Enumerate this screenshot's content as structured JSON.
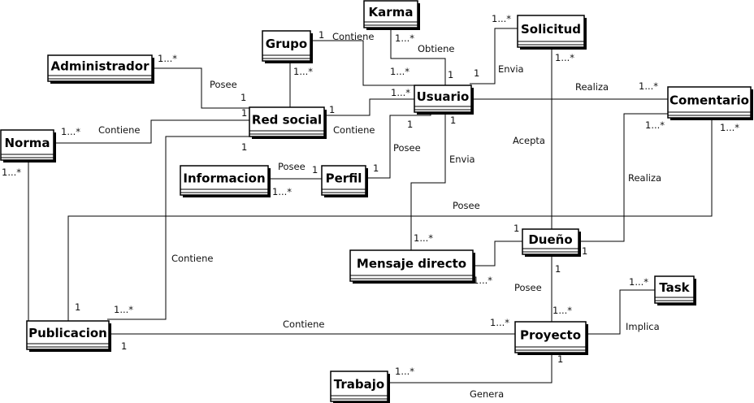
{
  "entities": [
    {
      "id": "karma",
      "name": "Karma"
    },
    {
      "id": "solicitud",
      "name": "Solicitud"
    },
    {
      "id": "grupo",
      "name": "Grupo"
    },
    {
      "id": "administrador",
      "name": "Administrador"
    },
    {
      "id": "usuario",
      "name": "Usuario"
    },
    {
      "id": "comentario",
      "name": "Comentario"
    },
    {
      "id": "red-social",
      "name": "Red social"
    },
    {
      "id": "norma",
      "name": "Norma"
    },
    {
      "id": "informacion",
      "name": "Informacion"
    },
    {
      "id": "perfil",
      "name": "Perfil"
    },
    {
      "id": "dueno",
      "name": "Dueño"
    },
    {
      "id": "mensaje-directo",
      "name": "Mensaje directo"
    },
    {
      "id": "task",
      "name": "Task"
    },
    {
      "id": "publicacion",
      "name": "Publicacion"
    },
    {
      "id": "proyecto",
      "name": "Proyecto"
    },
    {
      "id": "trabajo",
      "name": "Trabajo"
    }
  ],
  "relations": {
    "grupo_contiene": "Contiene",
    "karma_obtiene": "Obtiene",
    "solicitud_envia": "Envia",
    "admin_posee": "Posee",
    "usuario_realiza": "Realiza",
    "norma_contiene": "Contiene",
    "red_contiene": "Contiene",
    "usuario_posee": "Posee",
    "mensaje_envia": "Envia",
    "acepta": "Acepta",
    "perfil_posee": "Posee",
    "comentario_realiza": "Realiza",
    "publicacion_posee": "Posee",
    "publicacion_red_contiene": "Contiene",
    "dueno_posee": "Posee",
    "implica": "Implica",
    "proyecto_contiene": "Contiene",
    "genera": "Genera"
  },
  "multiplicities": {
    "one": "1",
    "many": "1...*"
  }
}
